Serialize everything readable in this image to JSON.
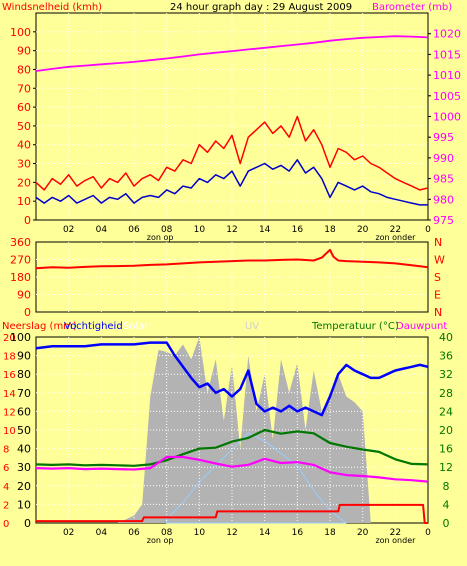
{
  "colors": {
    "background": "#ffff99",
    "wind": "#ff0000",
    "gust": "#cc0000",
    "wind_avg": "#0000cc",
    "barometer": "#ff00ff",
    "direction": "#ff0000",
    "humidity": "#0000ff",
    "temperature": "#007700",
    "dewpoint": "#ff00ff",
    "rain": "#ff0000",
    "solar": "#b3b3b3",
    "uv": "#99ccff",
    "uv_peak": "#ffff00"
  },
  "chart_data": [
    {
      "id": "wind-barometer",
      "type": "line",
      "title": "24 hour graph day : 29 August 2009",
      "left_label": "Windsnelheid (kmh)",
      "right_label": "Barometer (mb)",
      "ylim_left": [
        0,
        110
      ],
      "yticks_left": [
        "0",
        "10",
        "20",
        "30",
        "40",
        "50",
        "60",
        "70",
        "80",
        "90",
        "100"
      ],
      "ylim_right": [
        975,
        1025
      ],
      "yticks_right": [
        "975",
        "980",
        "985",
        "990",
        "995",
        "1000",
        "1005",
        "1010",
        "1015",
        "1020"
      ],
      "xticks": [
        "02",
        "04",
        "06",
        "08",
        "10",
        "12",
        "14",
        "16",
        "18",
        "20",
        "22",
        "0"
      ],
      "markers": [
        {
          "label": "zon op",
          "hour": 6.6
        },
        {
          "label": "zon onder",
          "hour": 20.6
        }
      ],
      "grid": true,
      "series": [
        {
          "name": "Windsnelheid",
          "x": [
            0,
            0.5,
            1,
            1.5,
            2,
            2.5,
            3,
            3.5,
            4,
            4.5,
            5,
            5.5,
            6,
            6.5,
            7,
            7.5,
            8,
            8.5,
            9,
            9.5,
            10,
            10.5,
            11,
            11.5,
            12,
            12.5,
            13,
            13.5,
            14,
            14.5,
            15,
            15.5,
            16,
            16.5,
            17,
            17.5,
            18,
            18.5,
            19,
            19.5,
            20,
            20.5,
            21,
            21.5,
            22,
            22.5,
            23,
            23.5,
            24
          ],
          "y": [
            20,
            16,
            22,
            19,
            24,
            18,
            21,
            23,
            17,
            22,
            20,
            25,
            18,
            22,
            24,
            21,
            28,
            26,
            32,
            30,
            40,
            36,
            42,
            38,
            45,
            30,
            44,
            48,
            52,
            46,
            50,
            44,
            55,
            42,
            48,
            40,
            28,
            38,
            36,
            32,
            34,
            30,
            28,
            25,
            22,
            20,
            18,
            16,
            17
          ]
        },
        {
          "name": "Windsnelheid gemiddeld",
          "x": [
            0,
            0.5,
            1,
            1.5,
            2,
            2.5,
            3,
            3.5,
            4,
            4.5,
            5,
            5.5,
            6,
            6.5,
            7,
            7.5,
            8,
            8.5,
            9,
            9.5,
            10,
            10.5,
            11,
            11.5,
            12,
            12.5,
            13,
            13.5,
            14,
            14.5,
            15,
            15.5,
            16,
            16.5,
            17,
            17.5,
            18,
            18.5,
            19,
            19.5,
            20,
            20.5,
            21,
            21.5,
            22,
            22.5,
            23,
            23.5,
            24
          ],
          "y": [
            12,
            9,
            12,
            10,
            13,
            9,
            11,
            13,
            9,
            12,
            11,
            14,
            9,
            12,
            13,
            12,
            16,
            14,
            18,
            17,
            22,
            20,
            24,
            22,
            26,
            18,
            26,
            28,
            30,
            27,
            29,
            26,
            32,
            25,
            28,
            22,
            12,
            20,
            18,
            16,
            18,
            15,
            14,
            12,
            11,
            10,
            9,
            8,
            8
          ]
        },
        {
          "name": "Barometer",
          "axis": "right",
          "x": [
            0,
            1,
            2,
            3,
            4,
            5,
            6,
            7,
            8,
            9,
            10,
            11,
            12,
            13,
            14,
            15,
            16,
            17,
            18,
            19,
            20,
            21,
            22,
            23,
            24
          ],
          "y": [
            1011,
            1011.5,
            1012,
            1012.3,
            1012.6,
            1012.9,
            1013.2,
            1013.6,
            1014,
            1014.5,
            1015,
            1015.4,
            1015.8,
            1016.2,
            1016.6,
            1017,
            1017.4,
            1017.8,
            1018.3,
            1018.7,
            1019,
            1019.2,
            1019.4,
            1019.3,
            1019.1
          ]
        }
      ]
    },
    {
      "id": "wind-direction",
      "type": "line",
      "ylim": [
        0,
        360
      ],
      "yticks": [
        "0",
        "90",
        "180",
        "270",
        "360"
      ],
      "right_labels": [
        "N",
        "W",
        "S",
        "E",
        "N"
      ],
      "grid": true,
      "series": [
        {
          "name": "Windrichting",
          "x": [
            0,
            1,
            2,
            3,
            4,
            5,
            6,
            7,
            8,
            9,
            10,
            11,
            12,
            13,
            14,
            15,
            16,
            17,
            17.5,
            18,
            18.2,
            18.5,
            19,
            20,
            21,
            22,
            23,
            24
          ],
          "y": [
            225,
            230,
            228,
            232,
            235,
            236,
            238,
            242,
            245,
            250,
            255,
            258,
            262,
            265,
            265,
            268,
            270,
            265,
            280,
            320,
            285,
            265,
            262,
            258,
            255,
            250,
            240,
            230
          ]
        }
      ]
    },
    {
      "id": "rain-humidity-temp",
      "type": "line",
      "left_labels": [
        "Neerslag (mm)",
        "Vochtigheid",
        "Solar",
        "UV"
      ],
      "right_labels": [
        "Temperatuur (°C)",
        "Dauwpunt"
      ],
      "yticks_left_humidity": [
        "0",
        "10",
        "20",
        "30",
        "40",
        "50",
        "60",
        "70",
        "80",
        "90",
        "100"
      ],
      "yticks_left_rain": [
        "0",
        "2",
        "4",
        "6",
        "8",
        "10",
        "12",
        "14",
        "16",
        "18",
        "20",
        "22",
        "24",
        "26",
        "28",
        "30",
        "32",
        "34",
        "36",
        "38",
        "40"
      ],
      "yticks_right": [
        "0",
        "4",
        "8",
        "12",
        "16",
        "20",
        "24",
        "28",
        "32",
        "36",
        "40"
      ],
      "ylim_humidity": [
        0,
        100
      ],
      "ylim_temperature": [
        0,
        40
      ],
      "markers": [
        {
          "label": "zon op",
          "hour": 6.6
        },
        {
          "label": "zon onder",
          "hour": 20.6
        }
      ],
      "grid": true,
      "series": [
        {
          "name": "Vochtigheid",
          "x": [
            0,
            1,
            2,
            3,
            4,
            5,
            6,
            7,
            8,
            8.5,
            9,
            9.5,
            10,
            10.5,
            11,
            11.5,
            12,
            12.5,
            13,
            13.5,
            14,
            14.5,
            15,
            15.5,
            16,
            16.5,
            17,
            17.5,
            18,
            18.5,
            19,
            19.5,
            20,
            20.5,
            21,
            21.5,
            22,
            22.5,
            23,
            23.5,
            24
          ],
          "y": [
            94,
            95,
            95,
            95,
            96,
            96,
            96,
            97,
            97,
            90,
            84,
            78,
            73,
            75,
            70,
            72,
            68,
            72,
            82,
            64,
            60,
            62,
            60,
            63,
            60,
            62,
            60,
            58,
            68,
            80,
            85,
            82,
            80,
            78,
            78,
            80,
            82,
            83,
            84,
            85,
            84
          ]
        },
        {
          "name": "Temperatuur",
          "x": [
            0,
            1,
            2,
            3,
            4,
            5,
            6,
            7,
            8,
            9,
            10,
            11,
            12,
            13,
            14,
            15,
            16,
            17,
            18,
            19,
            20,
            21,
            22,
            23,
            24
          ],
          "y": [
            12.6,
            12.5,
            12.6,
            12.4,
            12.5,
            12.4,
            12.3,
            12.6,
            13.5,
            14.8,
            16,
            16.2,
            17.5,
            18.3,
            20,
            19.2,
            19.7,
            19.3,
            17.2,
            16.4,
            15.8,
            15.3,
            13.7,
            12.7,
            12.6
          ]
        },
        {
          "name": "Dauwpunt",
          "x": [
            0,
            1,
            2,
            3,
            4,
            5,
            6,
            7,
            8,
            9,
            10,
            11,
            12,
            13,
            14,
            15,
            16,
            17,
            18,
            19,
            20,
            21,
            22,
            23,
            24
          ],
          "y": [
            11.8,
            11.7,
            11.8,
            11.6,
            11.7,
            11.6,
            11.5,
            11.8,
            14.2,
            14.2,
            13.6,
            12.8,
            12.1,
            12.5,
            13.8,
            12.9,
            13.1,
            12.5,
            10.9,
            10.3,
            10.1,
            9.8,
            9.4,
            9.2,
            8.9
          ]
        },
        {
          "name": "Neerslag",
          "x": [
            0,
            6.5,
            6.6,
            11,
            11.1,
            18.5,
            18.6,
            23.7,
            23.8,
            24
          ],
          "y": [
            0.4,
            0.4,
            1.2,
            1.2,
            2.5,
            2.5,
            3.9,
            3.9,
            0,
            0
          ]
        },
        {
          "name": "Solar",
          "x": [
            5,
            6,
            6.5,
            7,
            7.5,
            8,
            8.5,
            9,
            9.5,
            10,
            10.5,
            11,
            11.5,
            12,
            12.5,
            13,
            13.5,
            14,
            14.5,
            15,
            15.5,
            16,
            16.5,
            17,
            17.5,
            18,
            18.5,
            19,
            19.5,
            20,
            20.5,
            21
          ],
          "y": [
            0,
            4,
            10,
            68,
            93,
            92,
            90,
            96,
            88,
            100,
            70,
            88,
            55,
            85,
            40,
            90,
            60,
            80,
            45,
            88,
            70,
            86,
            50,
            82,
            60,
            70,
            80,
            68,
            65,
            60,
            0,
            0
          ]
        },
        {
          "name": "UV",
          "x": [
            8,
            9,
            10,
            11,
            12,
            13,
            14,
            15,
            16,
            17,
            18,
            19
          ],
          "y": [
            1,
            5,
            10,
            14,
            18,
            22,
            20,
            17,
            14,
            8,
            3,
            0
          ]
        }
      ]
    }
  ]
}
